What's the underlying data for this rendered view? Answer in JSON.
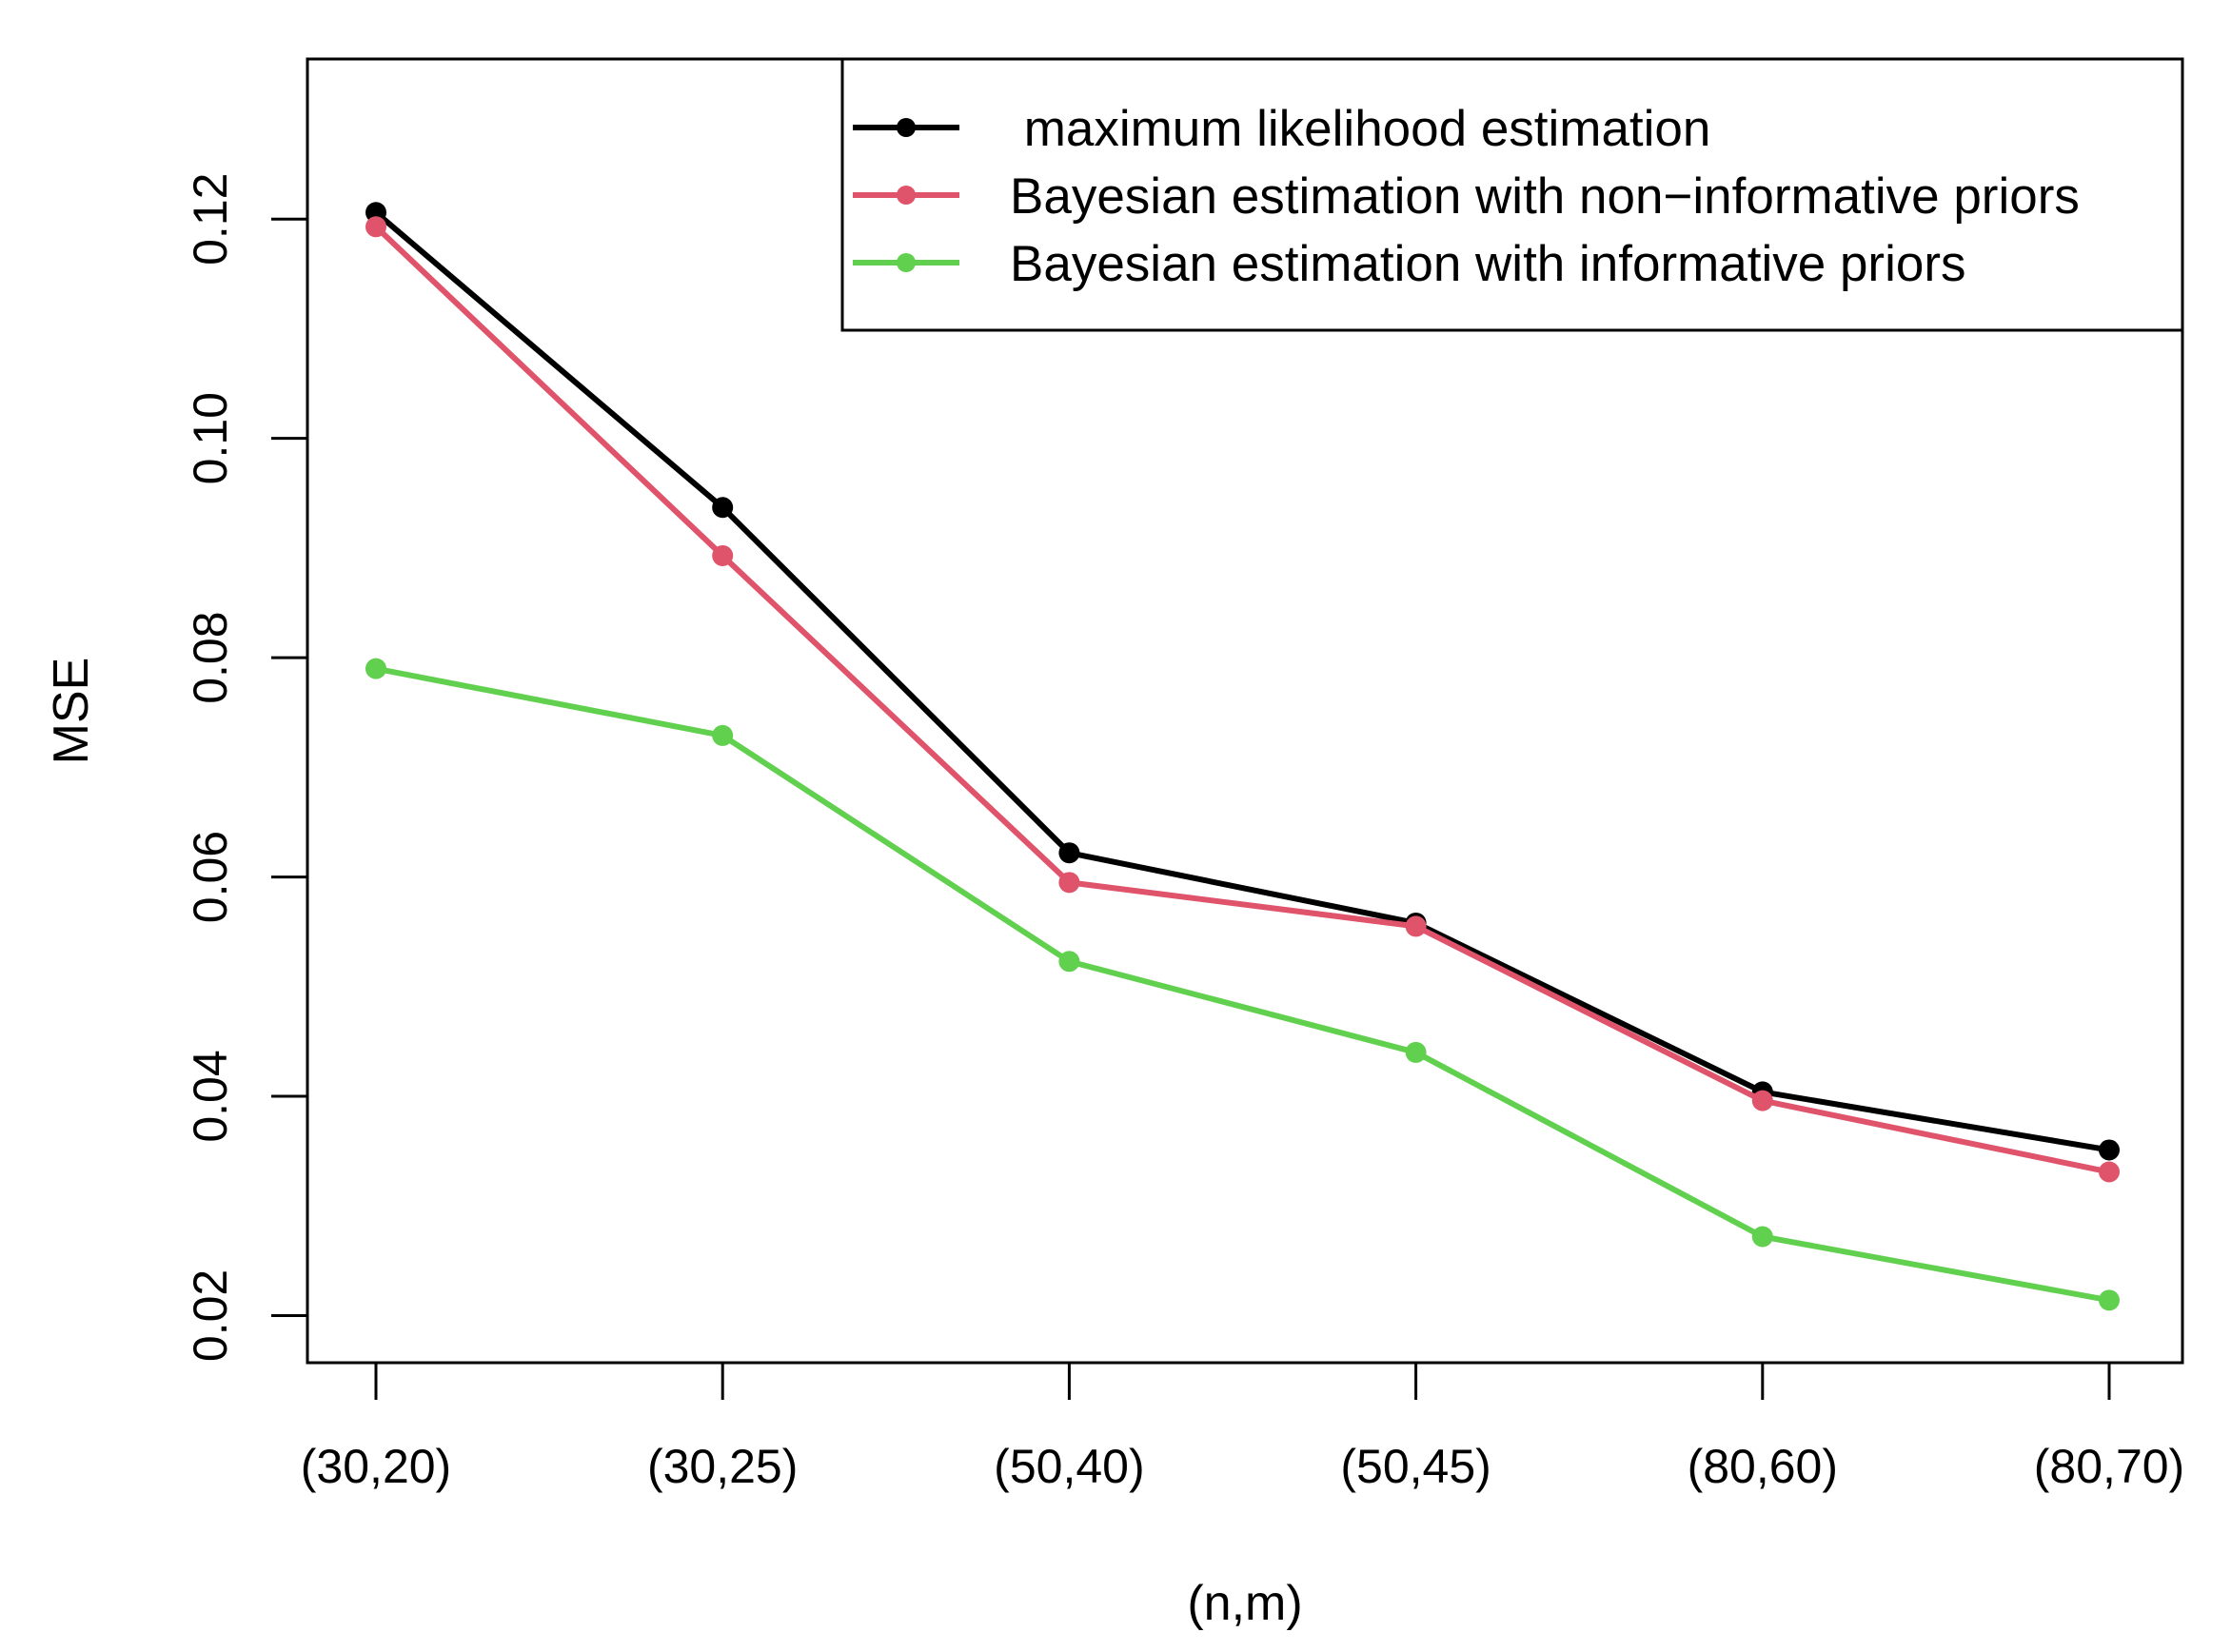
{
  "chart_data": {
    "type": "line",
    "title": "",
    "xlabel": "(n,m)",
    "ylabel": "MSE",
    "categories": [
      "(30,20)",
      "(30,25)",
      "(50,40)",
      "(50,45)",
      "(80,60)",
      "(80,70)"
    ],
    "yticks": [
      "0.02",
      "0.04",
      "0.06",
      "0.08",
      "0.10",
      "0.12"
    ],
    "ylim": [
      0.0157,
      0.1346
    ],
    "grid": false,
    "legend_position": "top-right",
    "series": [
      {
        "name": " maximum likelihood estimation",
        "color": "#000000",
        "values": [
          0.1206,
          0.0937,
          0.0622,
          0.0558,
          0.0404,
          0.0351
        ]
      },
      {
        "name": "Bayesian estimation with non−informative priors",
        "color": "#DF536B",
        "values": [
          0.1193,
          0.0893,
          0.0595,
          0.0555,
          0.0396,
          0.0331
        ]
      },
      {
        "name": "Bayesian estimation with informative priors",
        "color": "#61D04F",
        "values": [
          0.079,
          0.0729,
          0.0523,
          0.044,
          0.0272,
          0.0214
        ]
      }
    ]
  }
}
